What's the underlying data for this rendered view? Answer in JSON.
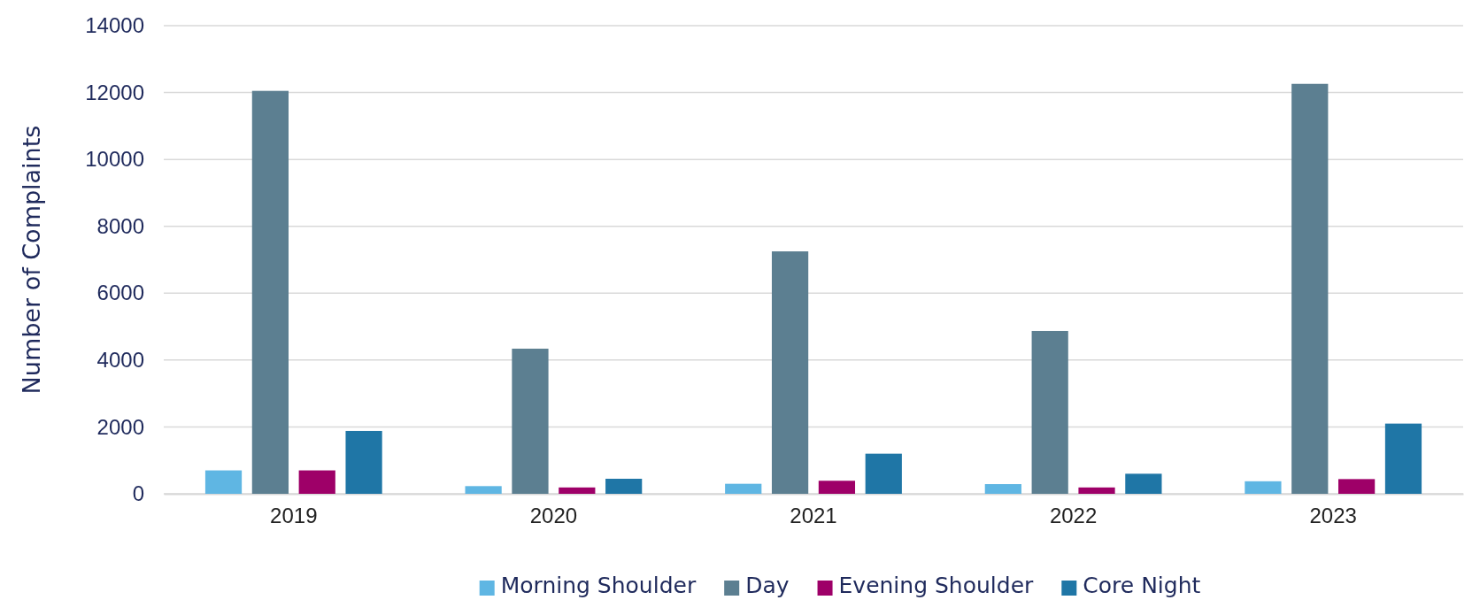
{
  "chart_data": {
    "type": "bar",
    "ylabel": "Number of Complaints",
    "categories": [
      "2019",
      "2020",
      "2021",
      "2022",
      "2023"
    ],
    "series": [
      {
        "name": "Morning Shoulder",
        "color": "#5fb6e3",
        "values": [
          700,
          230,
          300,
          290,
          375
        ]
      },
      {
        "name": "Day",
        "color": "#5c7f91",
        "values": [
          12050,
          4340,
          7250,
          4870,
          12260
        ]
      },
      {
        "name": "Evening Shoulder",
        "color": "#9e0068",
        "values": [
          700,
          190,
          390,
          190,
          440
        ]
      },
      {
        "name": "Core Night",
        "color": "#1f76a6",
        "values": [
          1880,
          450,
          1200,
          600,
          2100
        ]
      }
    ],
    "ylim": [
      0,
      14000
    ],
    "yticks": [
      0,
      2000,
      4000,
      6000,
      8000,
      10000,
      12000,
      14000
    ],
    "grid": "y",
    "legend": "bottom"
  }
}
